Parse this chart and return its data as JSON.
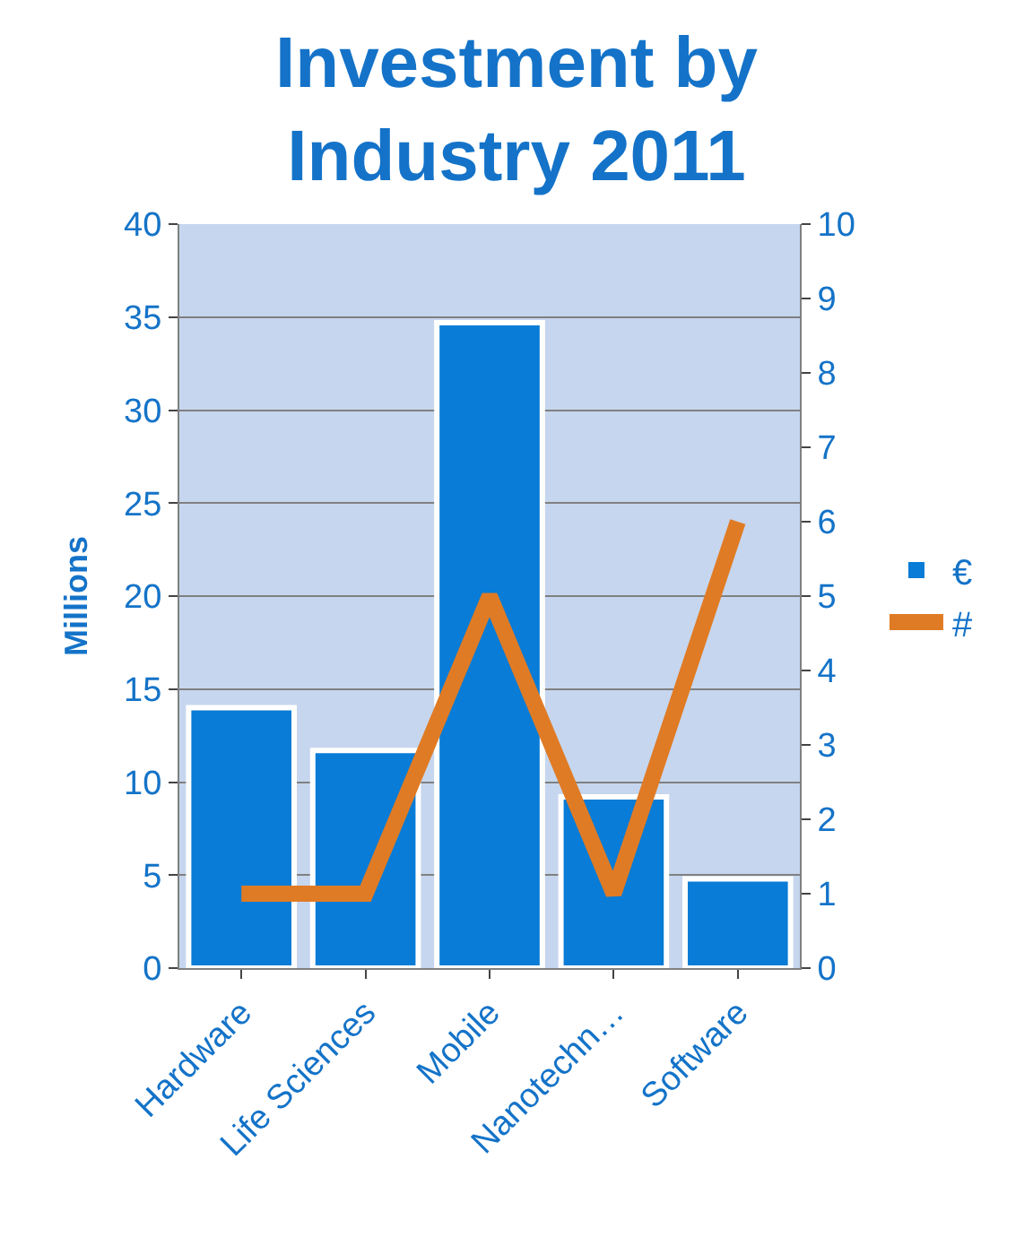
{
  "chart_data": {
    "type": "bar",
    "title": "Investment by Industry 2011",
    "ylabel": "Millions",
    "categories": [
      "Hardware",
      "Life Sciences",
      "Mobile",
      "Nanotechn…",
      "Software"
    ],
    "series": [
      {
        "name": "€",
        "color": "#087cd6",
        "values": [
          14,
          11.7,
          34.7,
          9.2,
          4.8
        ]
      },
      {
        "name": "#",
        "type": "line",
        "axis": "y2",
        "color": "#e07b25",
        "values": [
          1,
          1,
          5,
          1,
          6
        ]
      }
    ],
    "ylim": [
      0,
      40
    ],
    "yticks": [
      0,
      5,
      10,
      15,
      20,
      25,
      30,
      35,
      40
    ],
    "y2lim": [
      0,
      10
    ],
    "y2ticks": [
      0,
      1,
      2,
      3,
      4,
      5,
      6,
      7,
      8,
      9,
      10
    ],
    "grid": "y",
    "legend": "right",
    "marker": "none",
    "line_style": "solid"
  }
}
